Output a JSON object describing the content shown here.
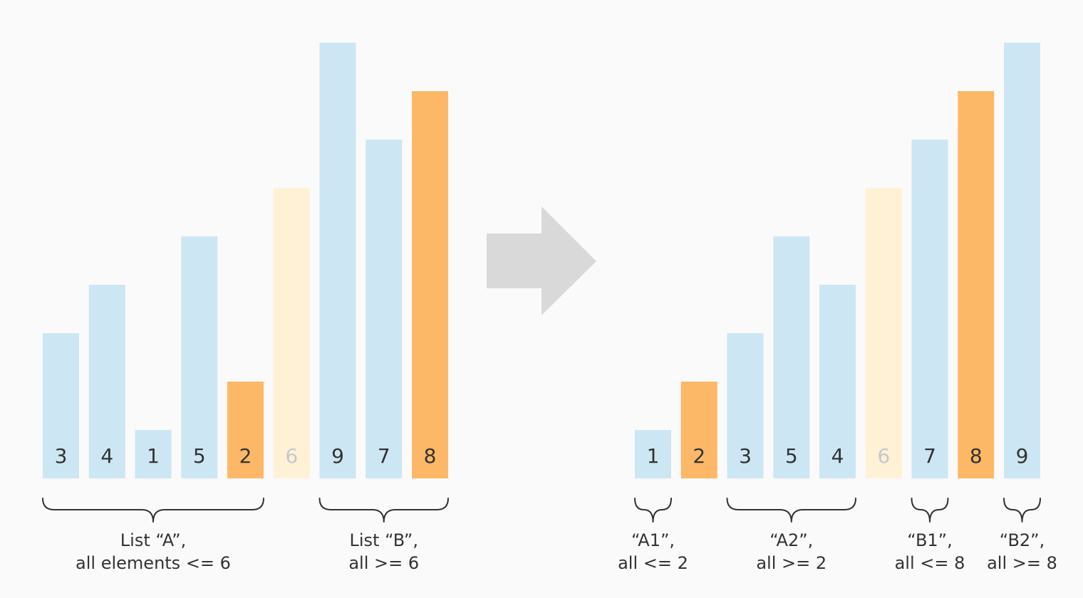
{
  "colors": {
    "background": "#fafafa",
    "regular": "#cde6f4",
    "pivot": "#fdb867",
    "partition_boundary": "#fef1d6",
    "text": "#333333",
    "faded_text": "#c8c8c8",
    "arrow": "#d9d9d9"
  },
  "arrow": {
    "icon": "right-arrow-icon"
  },
  "panels": [
    {
      "id": "before",
      "bars": [
        {
          "value": "3",
          "height": 3,
          "role": "regular"
        },
        {
          "value": "4",
          "height": 4,
          "role": "regular"
        },
        {
          "value": "1",
          "height": 1,
          "role": "regular"
        },
        {
          "value": "5",
          "height": 5,
          "role": "regular"
        },
        {
          "value": "2",
          "height": 2,
          "role": "pivot"
        },
        {
          "value": "6",
          "height": 6,
          "role": "partition_boundary"
        },
        {
          "value": "9",
          "height": 9,
          "role": "regular"
        },
        {
          "value": "7",
          "height": 7,
          "role": "regular"
        },
        {
          "value": "8",
          "height": 8,
          "role": "pivot"
        }
      ],
      "groups": [
        {
          "from": 0,
          "to": 4,
          "line1": "List “A”,",
          "line2": "all elements <= 6"
        },
        {
          "from": 6,
          "to": 8,
          "line1": "List “B”,",
          "line2": "all >= 6"
        }
      ]
    },
    {
      "id": "after",
      "bars": [
        {
          "value": "1",
          "height": 1,
          "role": "regular"
        },
        {
          "value": "2",
          "height": 2,
          "role": "pivot"
        },
        {
          "value": "3",
          "height": 3,
          "role": "regular"
        },
        {
          "value": "5",
          "height": 5,
          "role": "regular"
        },
        {
          "value": "4",
          "height": 4,
          "role": "regular"
        },
        {
          "value": "6",
          "height": 6,
          "role": "partition_boundary"
        },
        {
          "value": "7",
          "height": 7,
          "role": "regular"
        },
        {
          "value": "8",
          "height": 8,
          "role": "pivot"
        },
        {
          "value": "9",
          "height": 9,
          "role": "regular"
        }
      ],
      "groups": [
        {
          "from": 0,
          "to": 0,
          "line1": "“A1”,",
          "line2": "all <= 2"
        },
        {
          "from": 2,
          "to": 4,
          "line1": "“A2”,",
          "line2": "all >= 2"
        },
        {
          "from": 6,
          "to": 6,
          "line1": "“B1”,",
          "line2": "all <= 8"
        },
        {
          "from": 8,
          "to": 8,
          "line1": "“B2”,",
          "line2": "all >= 8"
        }
      ]
    }
  ]
}
